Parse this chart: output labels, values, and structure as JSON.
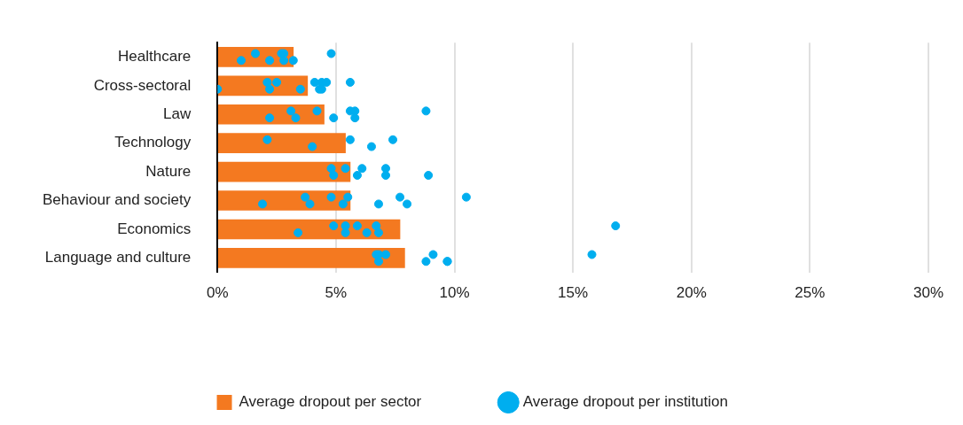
{
  "chart_data": {
    "type": "bar",
    "orientation": "horizontal",
    "categories": [
      "Healthcare",
      "Cross-sectoral",
      "Law",
      "Technology",
      "Nature",
      "Behaviour and society",
      "Economics",
      "Language and culture"
    ],
    "series": [
      {
        "name": "Average dropout per sector",
        "type": "bar",
        "color": "#f47920",
        "values": [
          3.2,
          3.8,
          4.5,
          5.4,
          5.6,
          5.6,
          7.7,
          7.9
        ]
      },
      {
        "name": "Average dropout per institution",
        "type": "scatter",
        "color": "#00aeef",
        "x": [
          "Healthcare",
          "Healthcare",
          "Healthcare",
          "Healthcare",
          "Healthcare",
          "Healthcare",
          "Healthcare",
          "Healthcare",
          "Cross-sectoral",
          "Cross-sectoral",
          "Cross-sectoral",
          "Cross-sectoral",
          "Cross-sectoral",
          "Cross-sectoral",
          "Cross-sectoral",
          "Cross-sectoral",
          "Cross-sectoral",
          "Cross-sectoral",
          "Cross-sectoral",
          "Law",
          "Law",
          "Law",
          "Law",
          "Law",
          "Law",
          "Law",
          "Law",
          "Law",
          "Technology",
          "Technology",
          "Technology",
          "Technology",
          "Technology",
          "Nature",
          "Nature",
          "Nature",
          "Nature",
          "Nature",
          "Nature",
          "Nature",
          "Nature",
          "Behaviour and society",
          "Behaviour and society",
          "Behaviour and society",
          "Behaviour and society",
          "Behaviour and society",
          "Behaviour and society",
          "Behaviour and society",
          "Behaviour and society",
          "Behaviour and society",
          "Behaviour and society",
          "Economics",
          "Economics",
          "Economics",
          "Economics",
          "Economics",
          "Economics",
          "Economics",
          "Economics",
          "Economics",
          "Language and culture",
          "Language and culture",
          "Language and culture",
          "Language and culture",
          "Language and culture",
          "Language and culture",
          "Language and culture",
          "Language and culture",
          "Language and culture"
        ],
        "values": [
          1.6,
          1.0,
          2.7,
          2.2,
          2.8,
          2.8,
          4.8,
          3.2,
          2.1,
          0.0,
          2.5,
          2.2,
          4.1,
          3.5,
          4.4,
          4.3,
          4.6,
          4.4,
          5.6,
          3.1,
          2.2,
          4.2,
          3.3,
          5.6,
          4.9,
          5.8,
          5.8,
          8.8,
          2.1,
          4.0,
          5.6,
          6.5,
          7.4,
          4.8,
          4.9,
          5.4,
          5.9,
          6.1,
          7.1,
          7.1,
          8.9,
          3.7,
          1.9,
          4.8,
          3.9,
          5.5,
          5.3,
          7.7,
          6.8,
          10.5,
          8.0,
          4.9,
          3.4,
          5.4,
          5.4,
          5.9,
          6.3,
          6.7,
          6.8,
          16.8,
          6.7,
          6.8,
          6.8,
          8.8,
          7.1,
          9.7,
          9.1,
          9.7,
          15.8
        ]
      }
    ],
    "xlim": [
      0,
      30
    ],
    "xticks": [
      {
        "value": 0,
        "label": "0%"
      },
      {
        "value": 5,
        "label": "5%"
      },
      {
        "value": 10,
        "label": "10%"
      },
      {
        "value": 15,
        "label": "15%"
      },
      {
        "value": 20,
        "label": "20%"
      },
      {
        "value": 25,
        "label": "25%"
      },
      {
        "value": 30,
        "label": "30%"
      }
    ],
    "grid": "x",
    "legend": "bottom",
    "marker": "circle"
  }
}
